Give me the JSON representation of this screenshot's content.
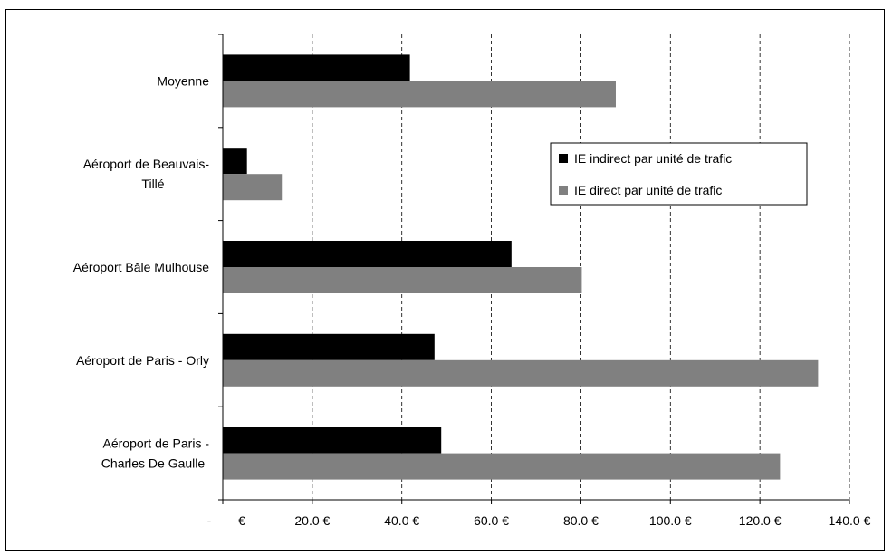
{
  "chart_data": {
    "type": "bar",
    "orientation": "horizontal",
    "categories": [
      [
        "Aéroport de Paris -",
        "Charles De Gaulle"
      ],
      [
        "Aéroport de Paris - Orly"
      ],
      [
        "Aéroport Bâle Mulhouse"
      ],
      [
        "Aéroport de Beauvais-",
        "Tillé"
      ],
      [
        "Moyenne"
      ]
    ],
    "series": [
      {
        "name": "IE indirect par unité de trafic",
        "color": "#000000",
        "values": [
          48.8,
          47.3,
          64.5,
          5.4,
          41.8
        ]
      },
      {
        "name": "IE direct par unité de trafic",
        "color": "#808080",
        "values": [
          124.5,
          133.0,
          80.2,
          13.2,
          87.8
        ]
      }
    ],
    "xlim": [
      0,
      140
    ],
    "x_ticks": [
      {
        "value": 0,
        "left": "-",
        "right": "€"
      },
      {
        "value": 20,
        "text": "20.0 €"
      },
      {
        "value": 40,
        "text": "40.0 €"
      },
      {
        "value": 60,
        "text": "60.0 €"
      },
      {
        "value": 80,
        "text": "80.0 €"
      },
      {
        "value": 100,
        "text": "100.0 €"
      },
      {
        "value": 120,
        "text": "120.0 €"
      },
      {
        "value": 140,
        "text": "140.0 €"
      }
    ],
    "grid": "vertical-dashed",
    "legend_position": "right",
    "title": "",
    "xlabel": "",
    "ylabel": ""
  }
}
